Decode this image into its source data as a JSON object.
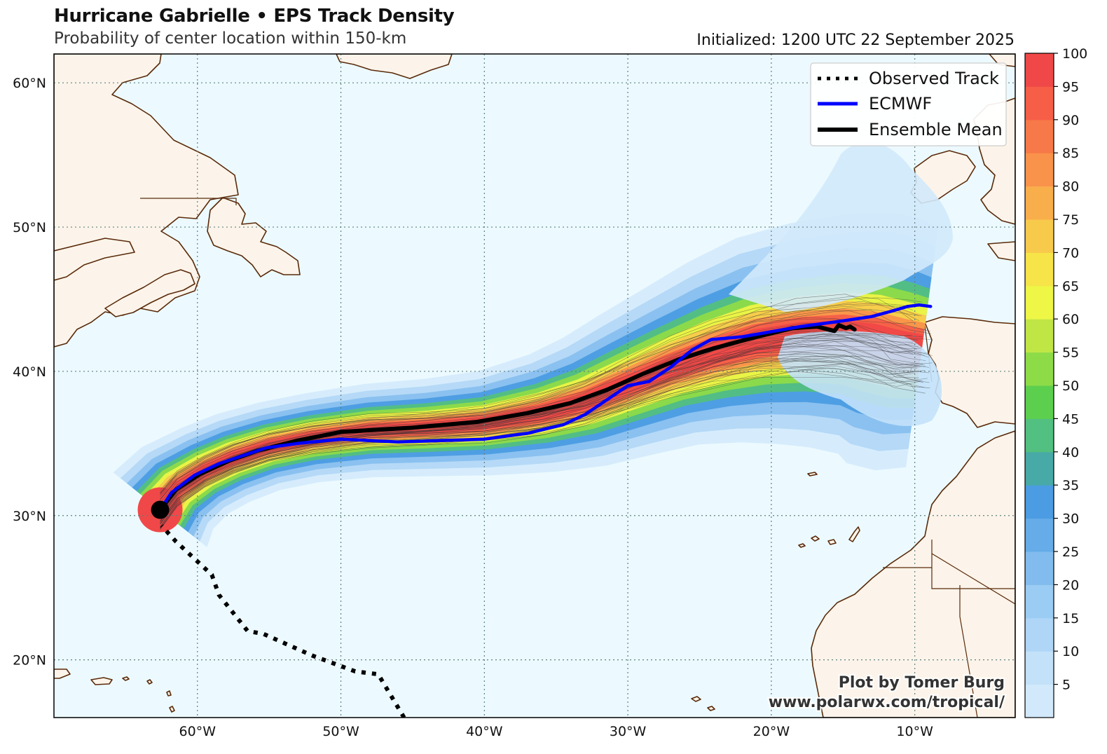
{
  "header": {
    "title": "Hurricane Gabrielle • EPS Track Density",
    "subtitle": "Probability of center location within 150-km",
    "initialized": "Initialized: 1200 UTC 22 September 2025"
  },
  "map": {
    "lon_range": [
      -70,
      -3
    ],
    "lat_range": [
      16,
      62
    ],
    "lon_ticks": [
      {
        "lon": -60,
        "label": "60°W"
      },
      {
        "lon": -50,
        "label": "50°W"
      },
      {
        "lon": -40,
        "label": "40°W"
      },
      {
        "lon": -30,
        "label": "30°W"
      },
      {
        "lon": -20,
        "label": "20°W"
      },
      {
        "lon": -10,
        "label": "10°W"
      }
    ],
    "lat_ticks": [
      {
        "lat": 60,
        "label": "60°N"
      },
      {
        "lat": 50,
        "label": "50°N"
      },
      {
        "lat": 40,
        "label": "40°N"
      },
      {
        "lat": 30,
        "label": "30°N"
      },
      {
        "lat": 20,
        "label": "20°N"
      }
    ],
    "colors": {
      "ocean": "#ecfaff",
      "land": "#fcf4ea",
      "coast": "#5a2a0a",
      "grid": "#5f7f7f"
    }
  },
  "legend": [
    {
      "label": "Observed Track",
      "color": "#000000",
      "style": "dotted"
    },
    {
      "label": "ECMWF",
      "color": "#0000ff",
      "style": "solid"
    },
    {
      "label": "Ensemble Mean",
      "color": "#000000",
      "style": "solid"
    }
  ],
  "tracks": {
    "observed": [
      [
        -45.6,
        16
      ],
      [
        -47.4,
        19
      ],
      [
        -49,
        19.2
      ],
      [
        -52,
        20.3
      ],
      [
        -55.4,
        21.8
      ],
      [
        -56.5,
        22
      ],
      [
        -58.5,
        24.5
      ],
      [
        -59,
        25.9
      ],
      [
        -61.5,
        28.2
      ],
      [
        -62.5,
        29.3
      ]
    ],
    "ecmwf": [
      [
        -62.6,
        30.4
      ],
      [
        -61.8,
        31.6
      ],
      [
        -60.2,
        32.8
      ],
      [
        -58.5,
        33.6
      ],
      [
        -57,
        34.1
      ],
      [
        -55.2,
        34.7
      ],
      [
        -53,
        35
      ],
      [
        -50,
        35.3
      ],
      [
        -46,
        35.1
      ],
      [
        -40,
        35.3
      ],
      [
        -37,
        35.7
      ],
      [
        -34.5,
        36.3
      ],
      [
        -33,
        37
      ],
      [
        -31.5,
        38
      ],
      [
        -30,
        39
      ],
      [
        -28.5,
        39.3
      ],
      [
        -27,
        40.3
      ],
      [
        -25.5,
        41.5
      ],
      [
        -24.2,
        42.2
      ],
      [
        -22,
        42.4
      ],
      [
        -18,
        43.1
      ],
      [
        -15,
        43.5
      ],
      [
        -13,
        43.8
      ],
      [
        -11.5,
        44.2
      ],
      [
        -10.5,
        44.5
      ],
      [
        -9.7,
        44.6
      ],
      [
        -8.9,
        44.5
      ]
    ],
    "ensemble_mean": [
      [
        -62.6,
        30.4
      ],
      [
        -61.5,
        31.8
      ],
      [
        -59.8,
        32.9
      ],
      [
        -57.8,
        33.8
      ],
      [
        -55.8,
        34.5
      ],
      [
        -53,
        35.2
      ],
      [
        -50,
        35.8
      ],
      [
        -45,
        36.1
      ],
      [
        -40.5,
        36.5
      ],
      [
        -37,
        37.1
      ],
      [
        -34,
        37.8
      ],
      [
        -31.5,
        38.7
      ],
      [
        -29,
        39.8
      ],
      [
        -26.5,
        40.8
      ],
      [
        -24,
        41.6
      ],
      [
        -21,
        42.4
      ],
      [
        -18.5,
        43
      ],
      [
        -16.8,
        43.1
      ],
      [
        -15.6,
        42.8
      ],
      [
        -15.3,
        43.2
      ],
      [
        -14.8,
        43
      ],
      [
        -14.5,
        43.1
      ],
      [
        -14.2,
        42.9
      ]
    ]
  },
  "density_center": [
    [
      -62.6,
      30.4
    ],
    [
      -61.4,
      31.9
    ],
    [
      -59.5,
      33.1
    ],
    [
      -57.5,
      34
    ],
    [
      -55,
      34.8
    ],
    [
      -52,
      35.4
    ],
    [
      -48,
      35.9
    ],
    [
      -44,
      36.1
    ],
    [
      -40,
      36.4
    ],
    [
      -36,
      37.1
    ],
    [
      -33,
      37.9
    ],
    [
      -30,
      39.1
    ],
    [
      -27,
      40.3
    ],
    [
      -24,
      41.3
    ],
    [
      -21,
      42.1
    ],
    [
      -18,
      42.5
    ],
    [
      -15,
      42.6
    ],
    [
      -13,
      42.3
    ],
    [
      -11,
      41.8
    ],
    [
      -9.5,
      41.6
    ]
  ],
  "density_halfwidth_deg": [
    1.6,
    1.45,
    1.3,
    1.25,
    1.2,
    1.2,
    1.25,
    1.3,
    1.4,
    1.6,
    1.8,
    2.0,
    2.2,
    2.5,
    2.8,
    3.0,
    3.2,
    3.4,
    3.4,
    3.2
  ],
  "colorbar": {
    "ticks": [
      5,
      10,
      15,
      20,
      25,
      30,
      35,
      40,
      45,
      50,
      55,
      60,
      65,
      70,
      75,
      80,
      85,
      90,
      95,
      100
    ],
    "colors": [
      "#d2e9fb",
      "#c3e1f9",
      "#afd6f6",
      "#9bccf3",
      "#82bcee",
      "#65ace8",
      "#4b9ce2",
      "#48aaa6",
      "#52c080",
      "#5cd04e",
      "#8edb48",
      "#c0e646",
      "#eef646",
      "#f7e448",
      "#f8ca4c",
      "#f9ae4c",
      "#f9924a",
      "#f77848",
      "#f65e48",
      "#f04848"
    ]
  },
  "credits": {
    "line1": "Plot by Tomer Burg",
    "line2": "www.polarwx.com/tropical/"
  }
}
